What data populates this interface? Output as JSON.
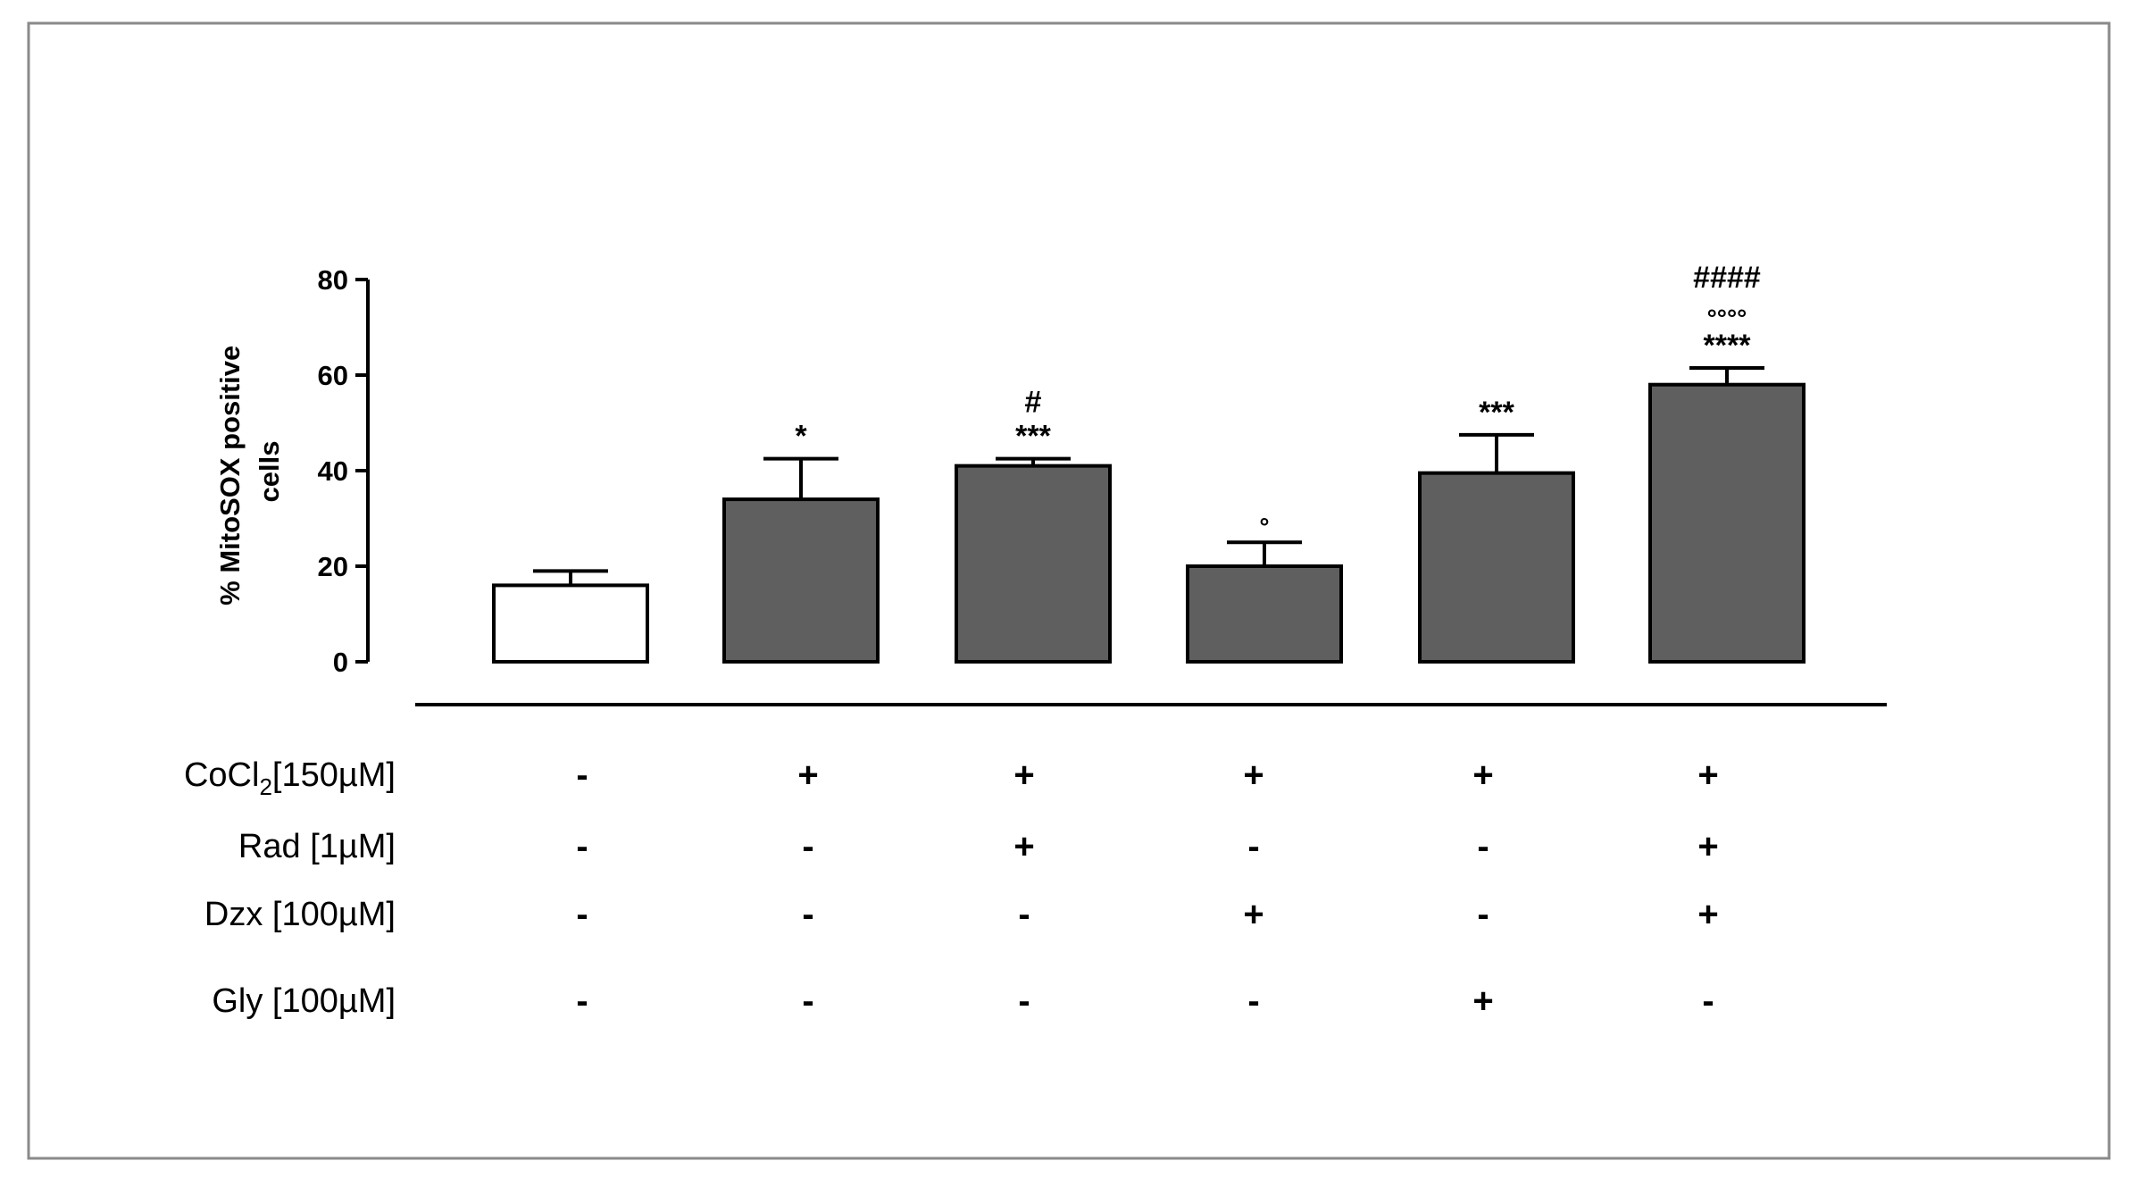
{
  "chart_data": {
    "type": "bar",
    "ylabel_line1": "% MitoSOX positive",
    "ylabel_line2": "cells",
    "ylim": [
      0,
      80
    ],
    "yticks": [
      "0",
      "20",
      "40",
      "60",
      "80"
    ],
    "colors": {
      "control": "#ffffff",
      "treated": "#5f5f5f",
      "stroke": "#000000"
    },
    "bars": [
      {
        "value": 16,
        "error": 3,
        "fill": "control",
        "annotations": []
      },
      {
        "value": 34,
        "error": 8.5,
        "fill": "treated",
        "annotations": [
          "*"
        ]
      },
      {
        "value": 41,
        "error": 1.5,
        "fill": "treated",
        "annotations": [
          "***",
          "#"
        ]
      },
      {
        "value": 20,
        "error": 5,
        "fill": "treated",
        "annotations": [
          "°"
        ]
      },
      {
        "value": 39.5,
        "error": 8,
        "fill": "treated",
        "annotations": [
          "***"
        ]
      },
      {
        "value": 58,
        "error": 3.5,
        "fill": "treated",
        "annotations": [
          "****",
          "°°°°",
          "####"
        ]
      }
    ],
    "treatments": [
      {
        "label": "CoCl",
        "subscript": "2",
        "suffix": "[150µM]",
        "signs": [
          "-",
          "+",
          "+",
          "+",
          "+",
          "+"
        ]
      },
      {
        "label": "Rad  [1µM]",
        "subscript": "",
        "suffix": "",
        "signs": [
          "-",
          "-",
          "+",
          "-",
          "-",
          "+"
        ]
      },
      {
        "label": "Dzx [100µM]",
        "subscript": "",
        "suffix": "",
        "signs": [
          "-",
          "-",
          "-",
          "+",
          "-",
          "+"
        ]
      },
      {
        "label": "Gly  [100µM]",
        "subscript": "",
        "suffix": "",
        "signs": [
          "-",
          "-",
          "-",
          "-",
          "+",
          "-"
        ]
      }
    ]
  }
}
